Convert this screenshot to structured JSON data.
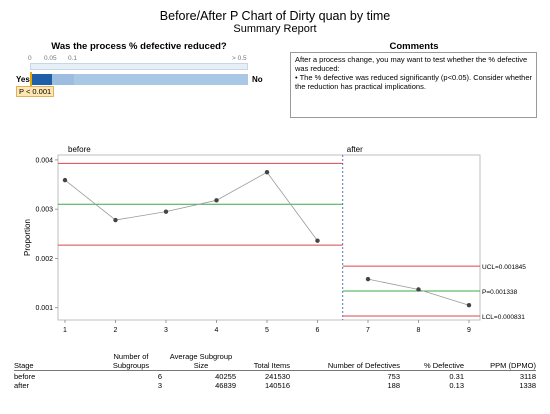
{
  "header": {
    "title": "Before/After P Chart of Dirty quan by time",
    "subtitle": "Summary Report"
  },
  "test_panel": {
    "question": "Was the process % defective reduced?",
    "scale_labels": [
      "0",
      "0.05",
      "0.1",
      "> 0.5"
    ],
    "yes_label": "Yes",
    "no_label": "No",
    "p_value_text": "P < 0.001",
    "p_value": 0.001
  },
  "comments": {
    "title": "Comments",
    "text": "After a process change, you may want to test whether the % defective was reduced:",
    "bullet": "The % defective was reduced significantly (p<0.05). Consider whether the reduction has practical implications."
  },
  "chart_data": {
    "type": "line",
    "ylabel": "Proportion",
    "x": [
      1,
      2,
      3,
      4,
      5,
      6,
      7,
      8,
      9
    ],
    "xticks": [
      "1",
      "2",
      "3",
      "4",
      "5",
      "6",
      "7",
      "8",
      "9"
    ],
    "ylim": [
      0.00075,
      0.0041
    ],
    "yticks": [
      "0.001",
      "0.002",
      "0.003",
      "0.004"
    ],
    "stages": [
      {
        "name": "before",
        "x": [
          1,
          2,
          3,
          4,
          5,
          6
        ],
        "values": [
          0.00359,
          0.00278,
          0.00295,
          0.00318,
          0.00375,
          0.00236
        ],
        "ucl": 0.00393,
        "center": 0.0031,
        "lcl": 0.00227
      },
      {
        "name": "after",
        "x": [
          7,
          8,
          9
        ],
        "values": [
          0.00158,
          0.00137,
          0.00105
        ],
        "ucl": 0.001845,
        "center": 0.001338,
        "lcl": 0.000831
      }
    ],
    "limit_labels": [
      "UCL=0.001845",
      "P=0.001338",
      "LCL=0.000831"
    ],
    "colors": {
      "limits": "#d9484a",
      "center": "#3aa84a",
      "line": "#9a9a9a",
      "points": "#444444",
      "divider": "#2b57a8"
    }
  },
  "summary_table": {
    "headers": [
      "Stage",
      "Number of Subgroups",
      "Average Subgroup Size",
      "Total Items",
      "Number of Defectives",
      "% Defective",
      "PPM (DPMO)"
    ],
    "rows": [
      [
        "before",
        "6",
        "40255",
        "241530",
        "753",
        "0.31",
        "3118"
      ],
      [
        "after",
        "3",
        "46839",
        "140516",
        "188",
        "0.13",
        "1338"
      ]
    ]
  }
}
